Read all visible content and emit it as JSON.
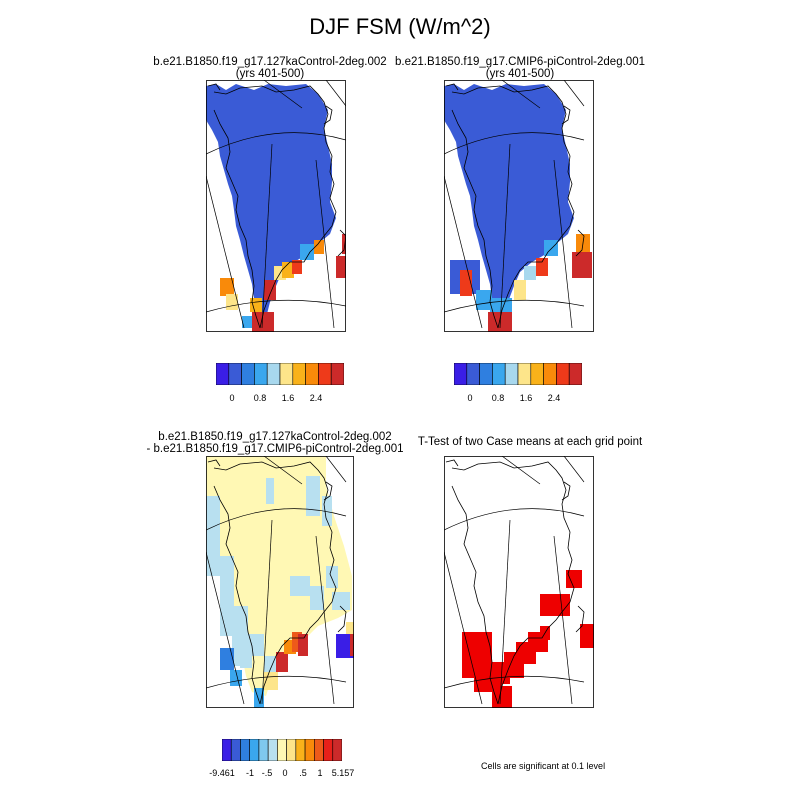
{
  "figure": {
    "title": "DJF FSM (W/m^2)"
  },
  "panels": [
    {
      "id": "case1",
      "title_lines": [
        "b.e21.B1850.f19_g17.127kaControl-2deg.002",
        "(yrs 401-500)"
      ]
    },
    {
      "id": "case2",
      "title_lines": [
        "b.e21.B1850.f19_g17.CMIP6-piControl-2deg.001",
        "(yrs 401-500)"
      ]
    },
    {
      "id": "diff",
      "title_lines": [
        "b.e21.B1850.f19_g17.127kaControl-2deg.002",
        "- b.e21.B1850.f19_g17.CMIP6-piControl-2deg.001"
      ]
    },
    {
      "id": "ttest",
      "title_lines": [
        "T-Test of two Case means at each grid point"
      ]
    }
  ],
  "colorbars": {
    "absolute": {
      "colors": [
        "#3a1ee6",
        "#3a5bd6",
        "#2f7fe0",
        "#3aa7ee",
        "#a8d8ee",
        "#fde58a",
        "#f9b21a",
        "#f98a0a",
        "#ee3a1a",
        "#cc2a2a"
      ],
      "tick_labels": [
        "0",
        "0.8",
        "1.6",
        "2.4"
      ]
    },
    "difference": {
      "colors": [
        "#3a1ee6",
        "#3a5bd6",
        "#2f7fe0",
        "#3aa7ee",
        "#7fc8ee",
        "#b8e0f0",
        "#fff8b4",
        "#fde58a",
        "#f9b21a",
        "#f98a0a",
        "#ee5a1a",
        "#e8201a",
        "#cc2a2a"
      ],
      "tick_labels": [
        "-9.461",
        "-1",
        "-.5",
        "0",
        ".5",
        "1",
        "5.157"
      ]
    }
  },
  "ttest_note": "Cells are significant at 0.1 level",
  "colors": {
    "ice_blue": "#3a5bd6",
    "land_yellow": "#fff8b4",
    "light_blue": "#b8e0f0",
    "significant": "#ee0000"
  }
}
